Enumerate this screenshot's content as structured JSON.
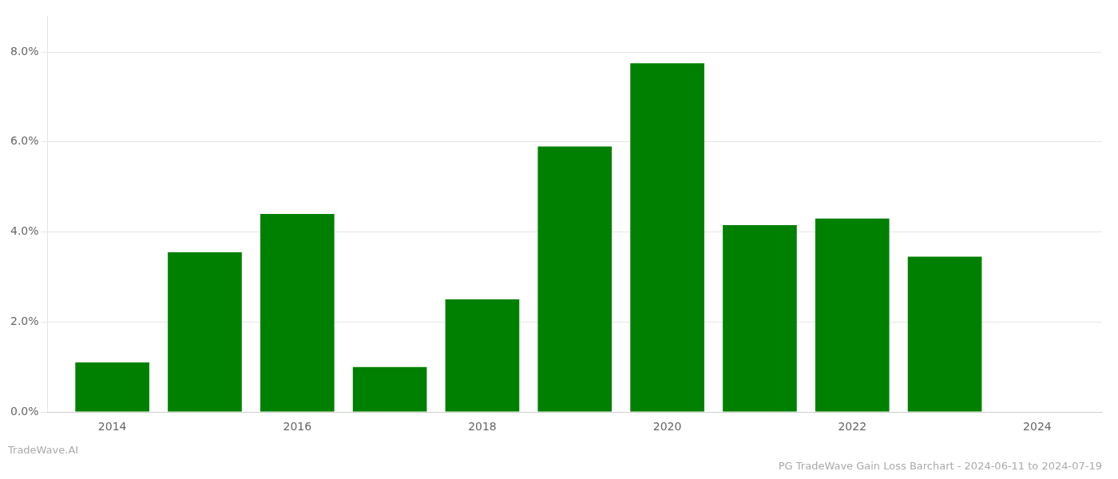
{
  "chart_data": {
    "type": "bar",
    "title": "PG TradeWave Gain Loss Barchart - 2024-06-11 to 2024-07-19",
    "subtitle": "TradeWave.AI",
    "x": [
      2014,
      2015,
      2016,
      2017,
      2018,
      2019,
      2020,
      2021,
      2022,
      2023
    ],
    "values": [
      0.011,
      0.0355,
      0.044,
      0.01,
      0.025,
      0.059,
      0.0775,
      0.0415,
      0.043,
      0.0345
    ],
    "color": "#008000",
    "xlim": [
      2013.3,
      2024.7
    ],
    "xticks": [
      2014,
      2016,
      2018,
      2020,
      2022,
      2024
    ],
    "ylim": [
      0,
      0.088
    ],
    "yticks": [
      {
        "value": 0.0,
        "label": "0.0%"
      },
      {
        "value": 0.02,
        "label": "2.0%"
      },
      {
        "value": 0.04,
        "label": "4.0%"
      },
      {
        "value": 0.06,
        "label": "6.0%"
      },
      {
        "value": 0.08,
        "label": "8.0%"
      }
    ],
    "grid": "y"
  }
}
